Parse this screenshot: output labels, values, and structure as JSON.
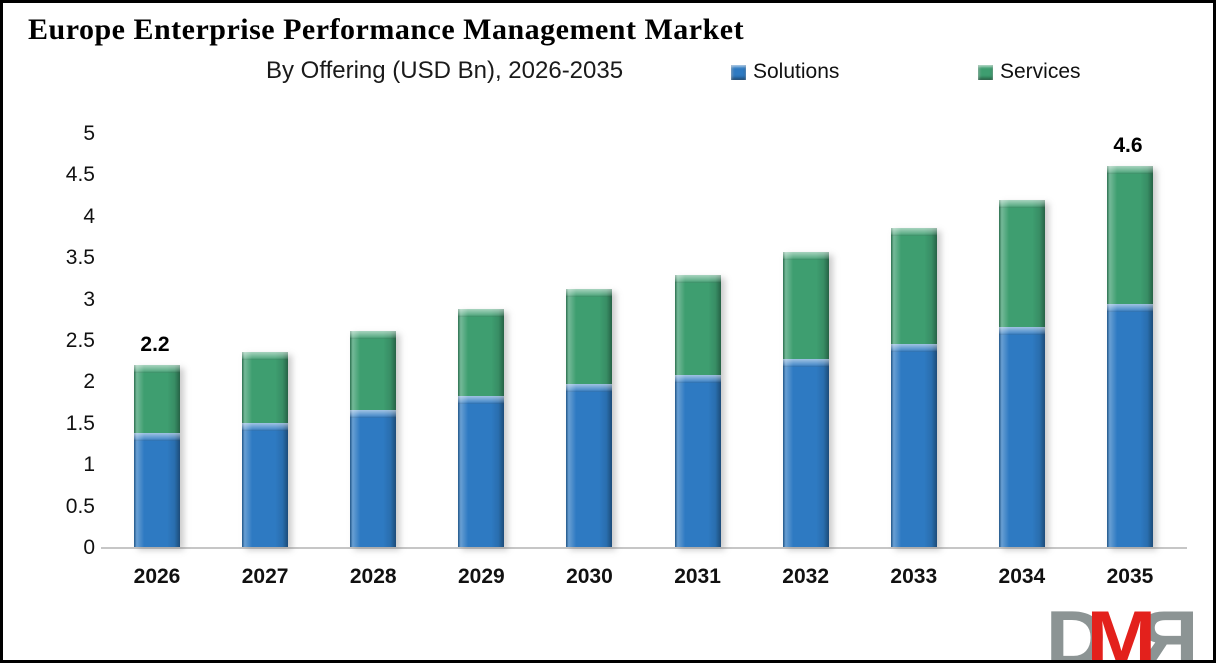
{
  "header": {
    "title": "Europe Enterprise Performance Management Market",
    "subtitle": "By Offering (USD Bn), 2026-2035"
  },
  "legend": [
    {
      "label": "Solutions",
      "color": "#2E7AC2"
    },
    {
      "label": "Services",
      "color": "#3E9E70"
    }
  ],
  "chart_data": {
    "type": "bar",
    "stacked": true,
    "title": "Europe Enterprise Performance Management Market",
    "subtitle": "By Offering (USD Bn), 2026-2035",
    "unit": "USD Bn",
    "categories": [
      "2026",
      "2027",
      "2028",
      "2029",
      "2030",
      "2031",
      "2032",
      "2033",
      "2034",
      "2035"
    ],
    "series": [
      {
        "name": "Solutions",
        "color": "#2E7AC2",
        "values": [
          1.38,
          1.5,
          1.65,
          1.82,
          1.97,
          2.08,
          2.27,
          2.45,
          2.66,
          2.94
        ]
      },
      {
        "name": "Services",
        "color": "#3E9E70",
        "values": [
          0.82,
          0.86,
          0.96,
          1.06,
          1.14,
          1.2,
          1.29,
          1.4,
          1.53,
          1.66
        ]
      }
    ],
    "totals": [
      2.2,
      2.36,
      2.61,
      2.88,
      3.11,
      3.28,
      3.56,
      3.85,
      4.19,
      4.6
    ],
    "data_labels": [
      {
        "index": 0,
        "text": "2.2"
      },
      {
        "index": 9,
        "text": "4.6"
      }
    ],
    "ylim": [
      0,
      5
    ],
    "ytick_step": 0.5,
    "yticks": [
      "0",
      "0.5",
      "1",
      "1.5",
      "2",
      "2.5",
      "3",
      "3.5",
      "4",
      "4.5",
      "5"
    ],
    "xlabel": "",
    "ylabel": "",
    "grid": false,
    "legend_position": "top"
  },
  "watermark": {
    "name": "DMR logo",
    "letters": [
      {
        "char": "D",
        "color": "#8C9494",
        "mirrored": false,
        "overlap": false
      },
      {
        "char": "M",
        "color": "#E3211C",
        "mirrored": false,
        "overlap": true
      },
      {
        "char": "R",
        "color": "#8C9494",
        "mirrored": true,
        "overlap": false
      }
    ]
  }
}
